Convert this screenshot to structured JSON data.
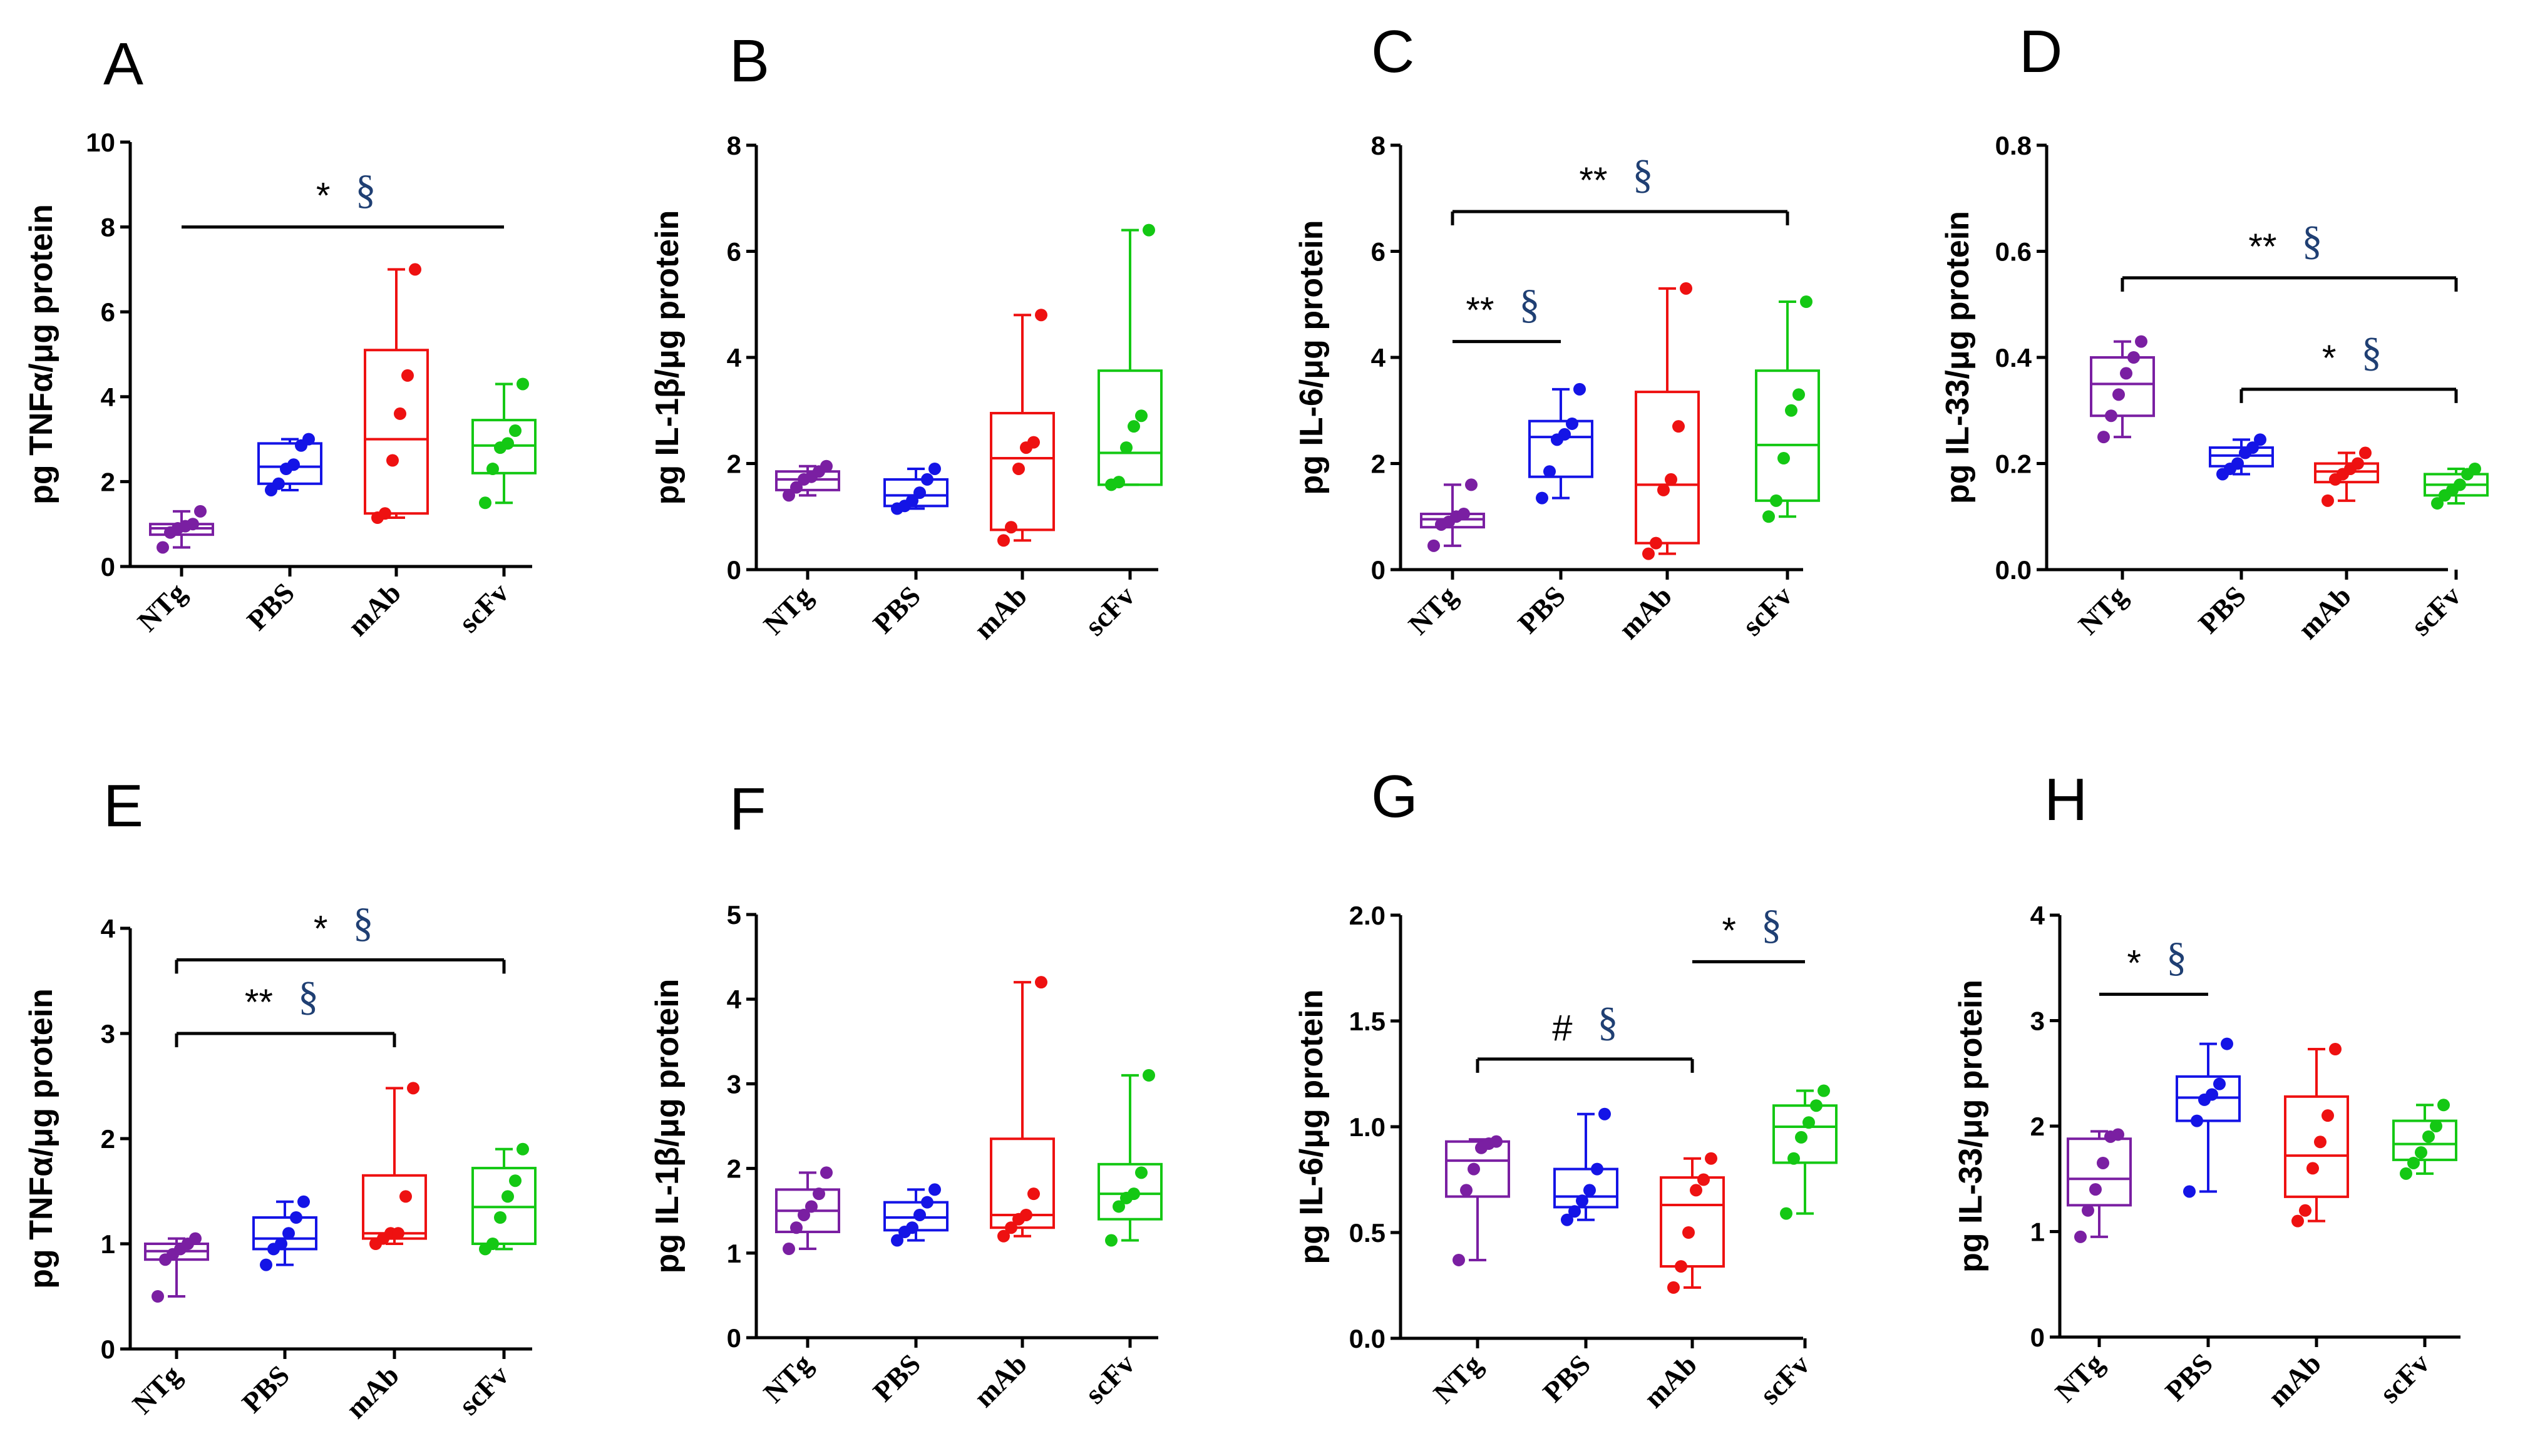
{
  "colors": {
    "NTg": "#7a1fa2",
    "PBS": "#1414e6",
    "mAb": "#ee1111",
    "scFv": "#14c814",
    "axis": "#000000",
    "section_sign": "#1f3f73"
  },
  "chart_data": [
    {
      "panel": "A",
      "type": "box",
      "ylabel": "pg TNFα/μg protein",
      "ylim": [
        0,
        10
      ],
      "yticks": [
        "0",
        "2",
        "4",
        "6",
        "8",
        "10"
      ],
      "categories": [
        "NTg",
        "PBS",
        "mAb",
        "scFv"
      ],
      "boxes": [
        {
          "min": 0.45,
          "q1": 0.75,
          "median": 0.9,
          "q3": 1.0,
          "max": 1.3,
          "points": [
            0.45,
            0.8,
            0.9,
            0.95,
            1.0,
            1.3
          ]
        },
        {
          "min": 1.8,
          "q1": 1.95,
          "median": 2.35,
          "q3": 2.9,
          "max": 3.0,
          "points": [
            1.8,
            1.95,
            2.3,
            2.4,
            2.85,
            3.0
          ]
        },
        {
          "min": 1.15,
          "q1": 1.25,
          "median": 3.0,
          "q3": 5.1,
          "max": 7.0,
          "points": [
            1.15,
            1.25,
            2.5,
            3.6,
            4.5,
            7.0
          ]
        },
        {
          "min": 1.5,
          "q1": 2.2,
          "median": 2.85,
          "q3": 3.45,
          "max": 4.3,
          "points": [
            1.5,
            2.3,
            2.8,
            2.9,
            3.2,
            4.3
          ]
        }
      ],
      "annotations": [
        {
          "from": 0,
          "to": 3,
          "y": 8.0,
          "label": "*",
          "sign": "§",
          "ticks": false
        }
      ]
    },
    {
      "panel": "B",
      "type": "box",
      "ylabel": "pg IL-1β/μg protein",
      "ylim": [
        0,
        8
      ],
      "yticks": [
        "0",
        "2",
        "4",
        "6",
        "8"
      ],
      "categories": [
        "NTg",
        "PBS",
        "mAb",
        "scFv"
      ],
      "boxes": [
        {
          "min": 1.4,
          "q1": 1.5,
          "median": 1.7,
          "q3": 1.85,
          "max": 1.95,
          "points": [
            1.4,
            1.55,
            1.7,
            1.75,
            1.85,
            1.95
          ]
        },
        {
          "min": 1.15,
          "q1": 1.2,
          "median": 1.4,
          "q3": 1.7,
          "max": 1.9,
          "points": [
            1.15,
            1.2,
            1.3,
            1.45,
            1.7,
            1.9
          ]
        },
        {
          "min": 0.55,
          "q1": 0.75,
          "median": 2.1,
          "q3": 2.95,
          "max": 4.8,
          "points": [
            0.55,
            0.8,
            1.9,
            2.3,
            2.4,
            4.8
          ]
        },
        {
          "min": 1.6,
          "q1": 1.6,
          "median": 2.2,
          "q3": 3.75,
          "max": 6.4,
          "points": [
            1.6,
            1.65,
            2.3,
            2.7,
            2.9,
            6.4
          ]
        }
      ],
      "annotations": []
    },
    {
      "panel": "C",
      "type": "box",
      "ylabel": "pg IL-6/μg protein",
      "ylim": [
        0,
        8
      ],
      "yticks": [
        "0",
        "2",
        "4",
        "6",
        "8"
      ],
      "categories": [
        "NTg",
        "PBS",
        "mAb",
        "scFv"
      ],
      "boxes": [
        {
          "min": 0.45,
          "q1": 0.8,
          "median": 0.95,
          "q3": 1.05,
          "max": 1.6,
          "points": [
            0.45,
            0.85,
            0.9,
            1.0,
            1.05,
            1.6
          ]
        },
        {
          "min": 1.35,
          "q1": 1.75,
          "median": 2.5,
          "q3": 2.8,
          "max": 3.4,
          "points": [
            1.35,
            1.85,
            2.45,
            2.55,
            2.75,
            3.4
          ]
        },
        {
          "min": 0.3,
          "q1": 0.5,
          "median": 1.6,
          "q3": 3.35,
          "max": 5.3,
          "points": [
            0.3,
            0.5,
            1.5,
            1.7,
            2.7,
            5.3
          ]
        },
        {
          "min": 1.0,
          "q1": 1.3,
          "median": 2.35,
          "q3": 3.75,
          "max": 5.05,
          "points": [
            1.0,
            1.3,
            2.1,
            3.0,
            3.3,
            5.05
          ]
        }
      ],
      "annotations": [
        {
          "from": 0,
          "to": 3,
          "y": 6.75,
          "label": "**",
          "sign": "§",
          "ticks": true
        },
        {
          "from": 0,
          "to": 1,
          "y": 4.3,
          "label": "**",
          "sign": "§",
          "ticks": false
        }
      ]
    },
    {
      "panel": "D",
      "type": "box",
      "ylabel": "pg IL-33/μg protein",
      "ylim": [
        0,
        0.8
      ],
      "yticks": [
        "0.0",
        "0.2",
        "0.4",
        "0.6",
        "0.8"
      ],
      "categories": [
        "NTg",
        "PBS",
        "mAb",
        "scFv"
      ],
      "boxes": [
        {
          "min": 0.25,
          "q1": 0.29,
          "median": 0.35,
          "q3": 0.4,
          "max": 0.43,
          "points": [
            0.25,
            0.29,
            0.33,
            0.37,
            0.4,
            0.43
          ]
        },
        {
          "min": 0.18,
          "q1": 0.195,
          "median": 0.215,
          "q3": 0.23,
          "max": 0.245,
          "points": [
            0.18,
            0.19,
            0.2,
            0.22,
            0.23,
            0.245
          ]
        },
        {
          "min": 0.13,
          "q1": 0.165,
          "median": 0.185,
          "q3": 0.2,
          "max": 0.22,
          "points": [
            0.13,
            0.17,
            0.18,
            0.19,
            0.2,
            0.22
          ]
        },
        {
          "min": 0.125,
          "q1": 0.14,
          "median": 0.16,
          "q3": 0.18,
          "max": 0.19,
          "points": [
            0.125,
            0.14,
            0.15,
            0.16,
            0.18,
            0.19
          ]
        }
      ],
      "annotations": [
        {
          "from": 0,
          "to": 3,
          "y": 0.55,
          "label": "**",
          "sign": "§",
          "ticks": true
        },
        {
          "from": 1,
          "to": 3,
          "y": 0.34,
          "label": "*",
          "sign": "§",
          "ticks": true
        }
      ]
    },
    {
      "panel": "E",
      "type": "box",
      "ylabel": "pg TNFα/μg protein",
      "ylim": [
        0,
        4
      ],
      "yticks": [
        "0",
        "1",
        "2",
        "3",
        "4"
      ],
      "categories": [
        "NTg",
        "PBS",
        "mAb",
        "scFv"
      ],
      "boxes": [
        {
          "min": 0.5,
          "q1": 0.85,
          "median": 0.93,
          "q3": 1.0,
          "max": 1.05,
          "points": [
            0.5,
            0.85,
            0.9,
            0.95,
            1.0,
            1.05
          ]
        },
        {
          "min": 0.8,
          "q1": 0.95,
          "median": 1.05,
          "q3": 1.25,
          "max": 1.4,
          "points": [
            0.8,
            0.95,
            1.0,
            1.1,
            1.25,
            1.4
          ]
        },
        {
          "min": 1.0,
          "q1": 1.05,
          "median": 1.1,
          "q3": 1.65,
          "max": 2.48,
          "points": [
            1.0,
            1.05,
            1.1,
            1.1,
            1.45,
            2.48
          ]
        },
        {
          "min": 0.95,
          "q1": 1.0,
          "median": 1.35,
          "q3": 1.72,
          "max": 1.9,
          "points": [
            0.95,
            1.0,
            1.25,
            1.45,
            1.6,
            1.9
          ]
        }
      ],
      "annotations": [
        {
          "from": 0,
          "to": 3,
          "y": 3.7,
          "label": "*",
          "sign": "§",
          "ticks": true
        },
        {
          "from": 0,
          "to": 2,
          "y": 3.0,
          "label": "**",
          "sign": "§",
          "ticks": true
        }
      ]
    },
    {
      "panel": "F",
      "type": "box",
      "ylabel": "pg IL-1β/μg protein",
      "ylim": [
        0,
        5
      ],
      "yticks": [
        "0",
        "1",
        "2",
        "3",
        "4",
        "5"
      ],
      "categories": [
        "NTg",
        "PBS",
        "mAb",
        "scFv"
      ],
      "boxes": [
        {
          "min": 1.05,
          "q1": 1.25,
          "median": 1.5,
          "q3": 1.75,
          "max": 1.95,
          "points": [
            1.05,
            1.3,
            1.45,
            1.55,
            1.7,
            1.95
          ]
        },
        {
          "min": 1.15,
          "q1": 1.27,
          "median": 1.42,
          "q3": 1.6,
          "max": 1.75,
          "points": [
            1.15,
            1.25,
            1.3,
            1.45,
            1.6,
            1.75
          ]
        },
        {
          "min": 1.2,
          "q1": 1.3,
          "median": 1.45,
          "q3": 2.35,
          "max": 4.2,
          "points": [
            1.2,
            1.3,
            1.4,
            1.45,
            1.7,
            4.2
          ]
        },
        {
          "min": 1.15,
          "q1": 1.4,
          "median": 1.7,
          "q3": 2.05,
          "max": 3.1,
          "points": [
            1.15,
            1.55,
            1.65,
            1.7,
            1.95,
            3.1
          ]
        }
      ],
      "annotations": []
    },
    {
      "panel": "G",
      "type": "box",
      "ylabel": "pg IL-6/μg protein",
      "ylim": [
        0,
        2.0
      ],
      "yticks": [
        "0.0",
        "0.5",
        "1.0",
        "1.5",
        "2.0"
      ],
      "categories": [
        "NTg",
        "PBS",
        "mAb",
        "scFv"
      ],
      "boxes": [
        {
          "min": 0.37,
          "q1": 0.67,
          "median": 0.84,
          "q3": 0.93,
          "max": 0.94,
          "points": [
            0.37,
            0.7,
            0.8,
            0.9,
            0.92,
            0.93
          ]
        },
        {
          "min": 0.56,
          "q1": 0.62,
          "median": 0.67,
          "q3": 0.8,
          "max": 1.06,
          "points": [
            0.56,
            0.6,
            0.65,
            0.7,
            0.8,
            1.06
          ]
        },
        {
          "min": 0.24,
          "q1": 0.34,
          "median": 0.63,
          "q3": 0.76,
          "max": 0.85,
          "points": [
            0.24,
            0.34,
            0.5,
            0.7,
            0.75,
            0.85
          ]
        },
        {
          "min": 0.59,
          "q1": 0.83,
          "median": 1.0,
          "q3": 1.1,
          "max": 1.17,
          "points": [
            0.59,
            0.85,
            0.95,
            1.02,
            1.1,
            1.17
          ]
        }
      ],
      "annotations": [
        {
          "from": 0,
          "to": 2,
          "y": 1.32,
          "label": "#",
          "sign": "§",
          "ticks": true
        },
        {
          "from": 2,
          "to": 3,
          "y": 1.78,
          "label": "*",
          "sign": "§",
          "ticks": false
        }
      ]
    },
    {
      "panel": "H",
      "type": "box",
      "ylabel": "pg IL-33/μg protein",
      "ylim": [
        0,
        4
      ],
      "yticks": [
        "0",
        "1",
        "2",
        "3",
        "4"
      ],
      "categories": [
        "NTg",
        "PBS",
        "mAb",
        "scFv"
      ],
      "boxes": [
        {
          "min": 0.95,
          "q1": 1.25,
          "median": 1.5,
          "q3": 1.88,
          "max": 1.95,
          "points": [
            0.95,
            1.2,
            1.4,
            1.65,
            1.9,
            1.92
          ]
        },
        {
          "min": 1.38,
          "q1": 2.05,
          "median": 2.27,
          "q3": 2.47,
          "max": 2.78,
          "points": [
            1.38,
            2.05,
            2.25,
            2.3,
            2.4,
            2.78
          ]
        },
        {
          "min": 1.1,
          "q1": 1.33,
          "median": 1.72,
          "q3": 2.28,
          "max": 2.73,
          "points": [
            1.1,
            1.2,
            1.6,
            1.85,
            2.1,
            2.73
          ]
        },
        {
          "min": 1.55,
          "q1": 1.68,
          "median": 1.83,
          "q3": 2.05,
          "max": 2.2,
          "points": [
            1.55,
            1.65,
            1.75,
            1.9,
            2.0,
            2.2
          ]
        }
      ],
      "annotations": [
        {
          "from": 0,
          "to": 1,
          "y": 3.25,
          "label": "*",
          "sign": "§",
          "ticks": false
        }
      ]
    }
  ]
}
